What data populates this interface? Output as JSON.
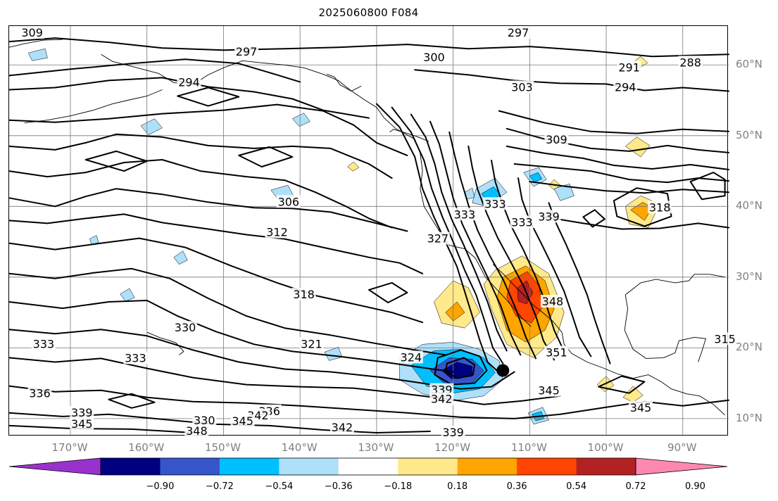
{
  "title": "2025060800 F084",
  "map": {
    "type": "contour-map",
    "projection": "cylindrical",
    "contour_field_levels": [
      288,
      291,
      294,
      297,
      300,
      303,
      306,
      309,
      312,
      315,
      318,
      321,
      324,
      327,
      330,
      333,
      336,
      339,
      342,
      345,
      348,
      351
    ],
    "lon_range": [
      -178,
      -84
    ],
    "lat_range": [
      7.5,
      65.5
    ],
    "gridlines": true,
    "coastlines": true,
    "marker": {
      "lon": -113.5,
      "lat": 16.8,
      "symbol": "filled-circle"
    },
    "lon_ticks": [
      "170°W",
      "160°W",
      "150°W",
      "140°W",
      "130°W",
      "120°W",
      "110°W",
      "100°W",
      "90°W"
    ],
    "lon_tick_values": [
      -170,
      -160,
      -150,
      -140,
      -130,
      -120,
      -110,
      -100,
      -90
    ],
    "lat_ticks": [
      "60°N",
      "50°N",
      "40°N",
      "30°N",
      "20°N",
      "10°N"
    ],
    "lat_tick_values": [
      60,
      50,
      40,
      30,
      20,
      10
    ],
    "contour_labels": [
      {
        "text": "309",
        "lon": -175,
        "lat": 64.5
      },
      {
        "text": "297",
        "lon": -147,
        "lat": 61.8
      },
      {
        "text": "294",
        "lon": -154.5,
        "lat": 57.5
      },
      {
        "text": "300",
        "lon": -122.5,
        "lat": 61.0
      },
      {
        "text": "303",
        "lon": -111,
        "lat": 56.8
      },
      {
        "text": "291",
        "lon": -97,
        "lat": 59.6
      },
      {
        "text": "294",
        "lon": -97.5,
        "lat": 56.8
      },
      {
        "text": "288",
        "lon": -89,
        "lat": 60.3
      },
      {
        "text": "309",
        "lon": -106.5,
        "lat": 49.4
      },
      {
        "text": "306",
        "lon": -141.5,
        "lat": 40.6
      },
      {
        "text": "312",
        "lon": -143,
        "lat": 36.3
      },
      {
        "text": "318",
        "lon": -139.5,
        "lat": 27.5
      },
      {
        "text": "330",
        "lon": -155,
        "lat": 22.8
      },
      {
        "text": "333",
        "lon": -173.5,
        "lat": 20.5
      },
      {
        "text": "333",
        "lon": -161.5,
        "lat": 18.5
      },
      {
        "text": "321",
        "lon": -138.5,
        "lat": 20.5
      },
      {
        "text": "324",
        "lon": -125.5,
        "lat": 18.6
      },
      {
        "text": "339",
        "lon": -121.5,
        "lat": 14.0
      },
      {
        "text": "342",
        "lon": -121.5,
        "lat": 12.7
      },
      {
        "text": "345",
        "lon": -107.5,
        "lat": 13.9
      },
      {
        "text": "351",
        "lon": -106.5,
        "lat": 19.3
      },
      {
        "text": "348",
        "lon": -107,
        "lat": 26.5
      },
      {
        "text": "345",
        "lon": -95.5,
        "lat": 11.5
      },
      {
        "text": "336",
        "lon": -174,
        "lat": 13.5
      },
      {
        "text": "339",
        "lon": -168.5,
        "lat": 10.8
      },
      {
        "text": "345",
        "lon": -168.5,
        "lat": 9.2
      },
      {
        "text": "330",
        "lon": -152.5,
        "lat": 9.7
      },
      {
        "text": "336",
        "lon": -144,
        "lat": 11.0
      },
      {
        "text": "342",
        "lon": -145.5,
        "lat": 10.4
      },
      {
        "text": "345",
        "lon": -147.5,
        "lat": 9.6
      },
      {
        "text": "348",
        "lon": -153.5,
        "lat": 8.2
      },
      {
        "text": "342",
        "lon": -134.5,
        "lat": 8.7
      },
      {
        "text": "339",
        "lon": -120,
        "lat": 8.0
      },
      {
        "text": "327",
        "lon": -122,
        "lat": 35.4
      },
      {
        "text": "333",
        "lon": -118.5,
        "lat": 38.8
      },
      {
        "text": "333",
        "lon": -114.5,
        "lat": 40.3
      },
      {
        "text": "333",
        "lon": -111,
        "lat": 37.7
      },
      {
        "text": "339",
        "lon": -107.5,
        "lat": 38.5
      },
      {
        "text": "318",
        "lon": -93,
        "lat": 39.8
      },
      {
        "text": "315",
        "lon": -84.5,
        "lat": 21.2
      },
      {
        "text": "297",
        "lon": -111.5,
        "lat": 64.5
      }
    ]
  },
  "colorbar": {
    "boundaries": [
      -1.08,
      -0.9,
      -0.72,
      -0.54,
      -0.36,
      -0.18,
      0.18,
      0.36,
      0.54,
      0.72,
      0.9,
      1.08
    ],
    "colors": [
      "#000080",
      "#3655c9",
      "#00bfff",
      "#aee0fa",
      "#ffffff",
      "#ffe98a",
      "#ffa500",
      "#ff4500",
      "#b22222"
    ],
    "under_color": "#9932cc",
    "over_color": "#ff88b0",
    "extend": "both",
    "tick_labels": [
      "−0.90",
      "−0.72",
      "−0.54",
      "−0.36",
      "−0.18",
      "0.18",
      "0.36",
      "0.54",
      "0.72",
      "0.90"
    ]
  }
}
